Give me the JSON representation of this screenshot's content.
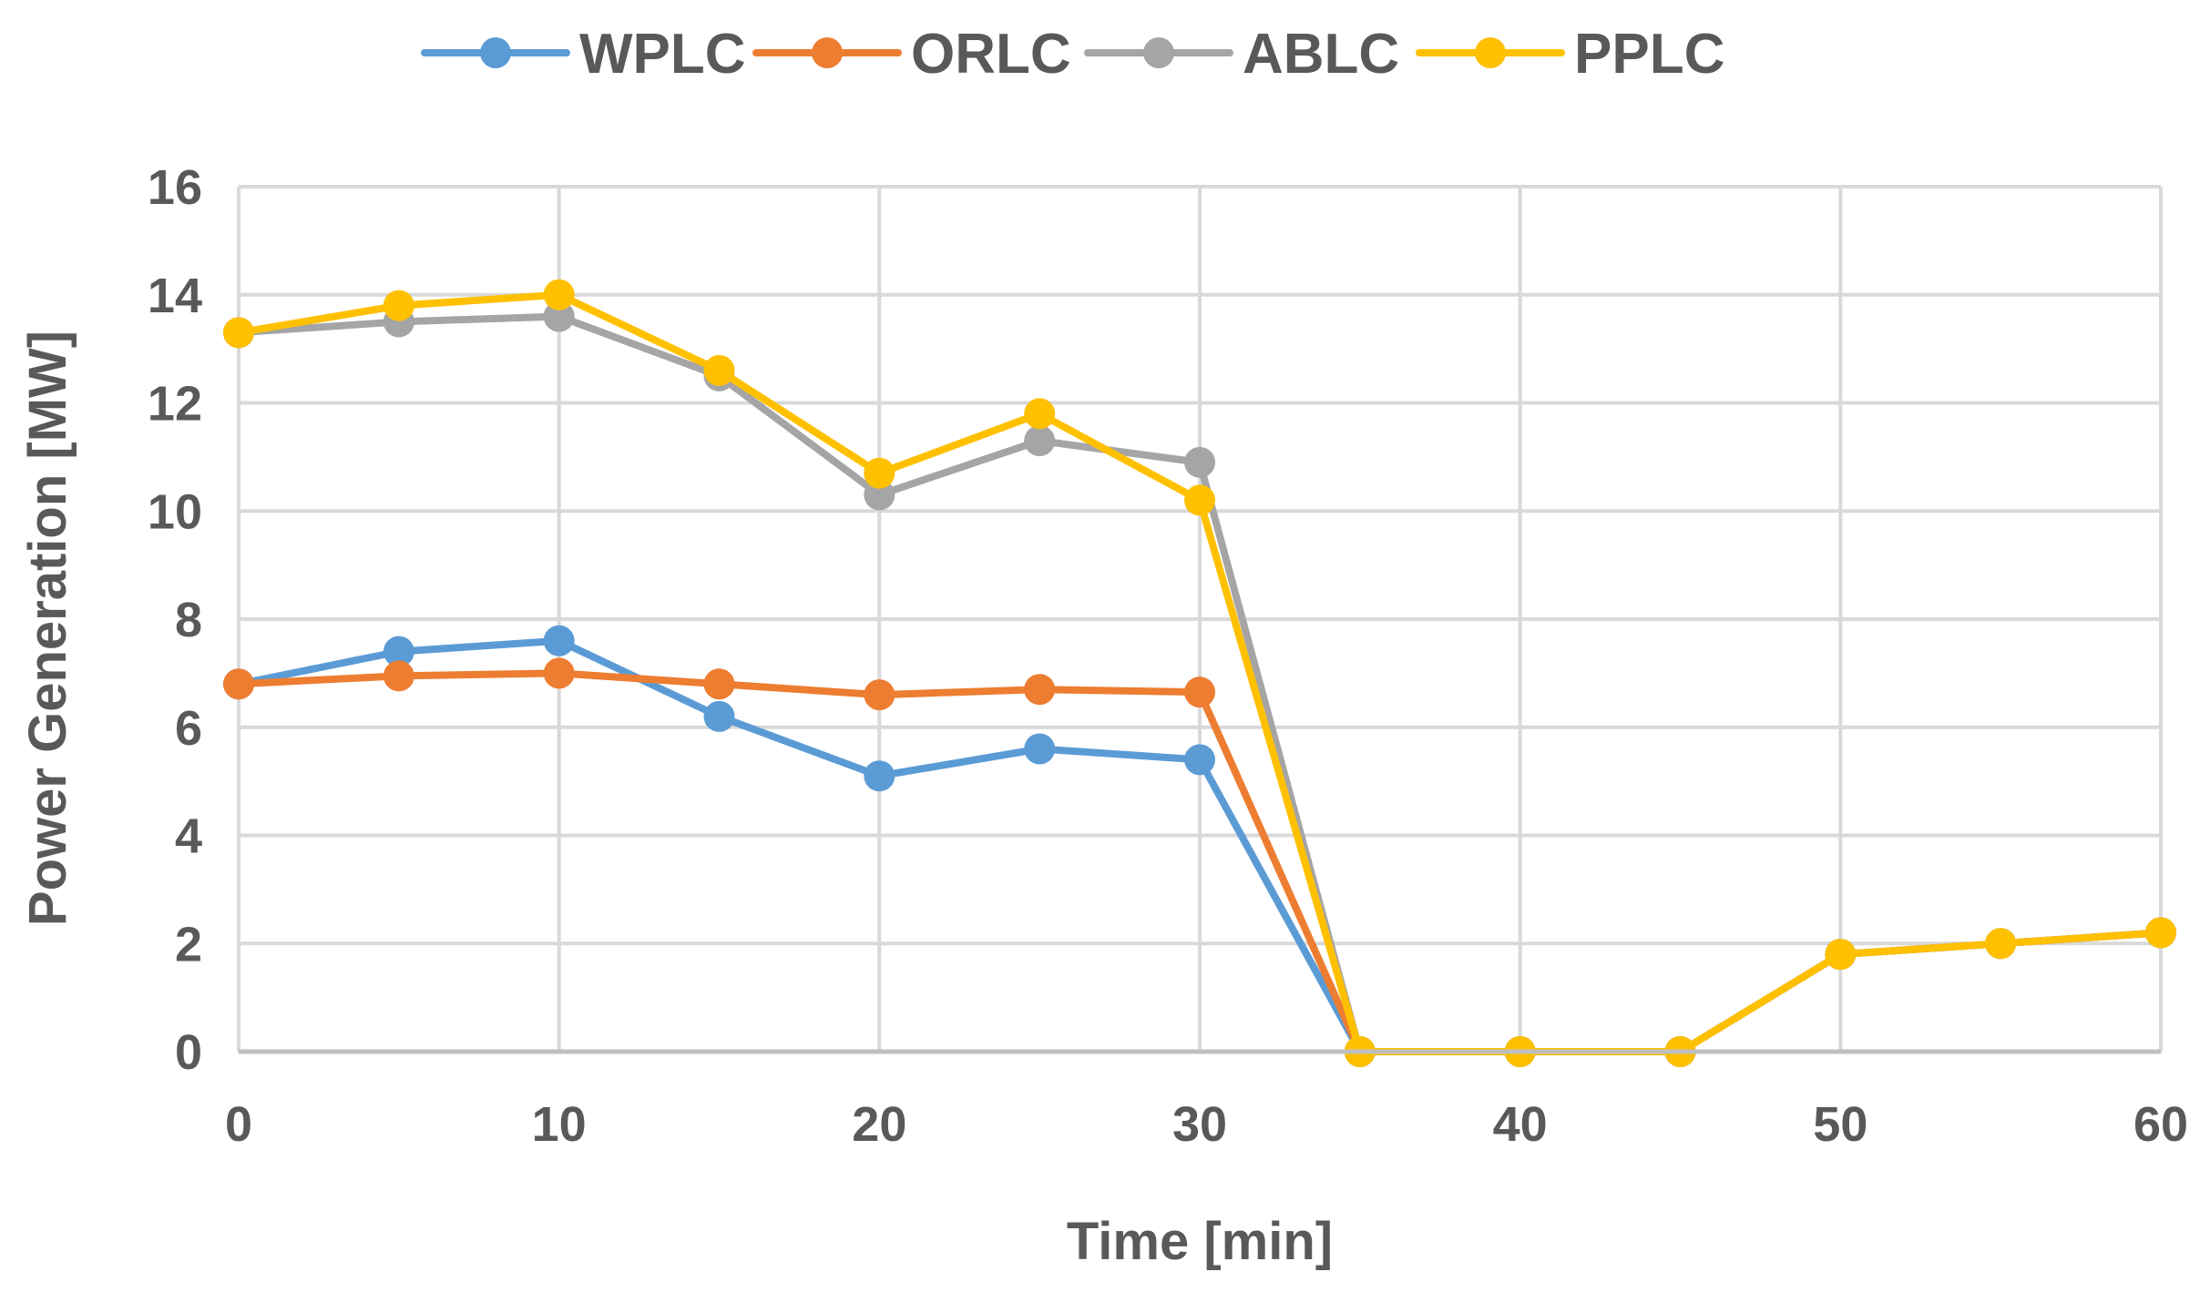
{
  "chart_data": {
    "type": "line",
    "title": "",
    "xlabel": "Time [min]",
    "ylabel": "Power Generation [MW]",
    "xlim": [
      0,
      60
    ],
    "ylim": [
      0,
      16
    ],
    "xticks": [
      0,
      10,
      20,
      30,
      40,
      50,
      60
    ],
    "yticks": [
      0,
      2,
      4,
      6,
      8,
      10,
      12,
      14,
      16
    ],
    "grid": true,
    "legend_position": "top-center",
    "x": [
      0,
      5,
      10,
      15,
      20,
      25,
      30,
      35,
      40,
      45,
      50,
      55,
      60
    ],
    "series": [
      {
        "name": "WPLC",
        "color": "#5B9BD5",
        "values": [
          6.8,
          7.4,
          7.6,
          6.2,
          5.1,
          5.6,
          5.4,
          0,
          0,
          0,
          1.8,
          2.0,
          2.2
        ]
      },
      {
        "name": "ORLC",
        "color": "#ED7D31",
        "values": [
          6.8,
          6.95,
          7.0,
          6.8,
          6.6,
          6.7,
          6.65,
          0,
          0,
          0,
          1.8,
          2.0,
          2.2
        ]
      },
      {
        "name": "ABLC",
        "color": "#A5A5A5",
        "values": [
          13.3,
          13.5,
          13.6,
          12.5,
          10.3,
          11.3,
          10.9,
          0,
          0,
          0,
          1.8,
          2.0,
          2.2
        ]
      },
      {
        "name": "PPLC",
        "color": "#FFC000",
        "values": [
          13.3,
          13.8,
          14.0,
          12.6,
          10.7,
          11.8,
          10.2,
          0,
          0,
          0,
          1.8,
          2.0,
          2.2
        ]
      }
    ]
  }
}
